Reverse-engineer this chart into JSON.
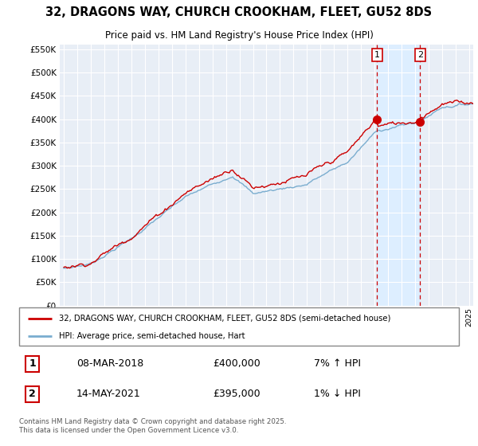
{
  "title": "32, DRAGONS WAY, CHURCH CROOKHAM, FLEET, GU52 8DS",
  "subtitle": "Price paid vs. HM Land Registry's House Price Index (HPI)",
  "red_label": "32, DRAGONS WAY, CHURCH CROOKHAM, FLEET, GU52 8DS (semi-detached house)",
  "blue_label": "HPI: Average price, semi-detached house, Hart",
  "footnote": "Contains HM Land Registry data © Crown copyright and database right 2025.\nThis data is licensed under the Open Government Licence v3.0.",
  "sale1_date": "08-MAR-2018",
  "sale1_price": "£400,000",
  "sale1_hpi": "7% ↑ HPI",
  "sale2_date": "14-MAY-2021",
  "sale2_price": "£395,000",
  "sale2_hpi": "1% ↓ HPI",
  "sale1_year": 2018.19,
  "sale2_year": 2021.37,
  "sale1_price_val": 400000,
  "sale2_price_val": 395000,
  "highlight_bg": "#ddeeff",
  "ylim": [
    0,
    560000
  ],
  "xlim_start": 1994.7,
  "xlim_end": 2025.3,
  "background_color": "#ffffff",
  "plot_bg": "#e8eef6",
  "grid_color": "#ffffff",
  "red_color": "#cc0000",
  "blue_color": "#7aadcf",
  "vline_color": "#cc0000"
}
